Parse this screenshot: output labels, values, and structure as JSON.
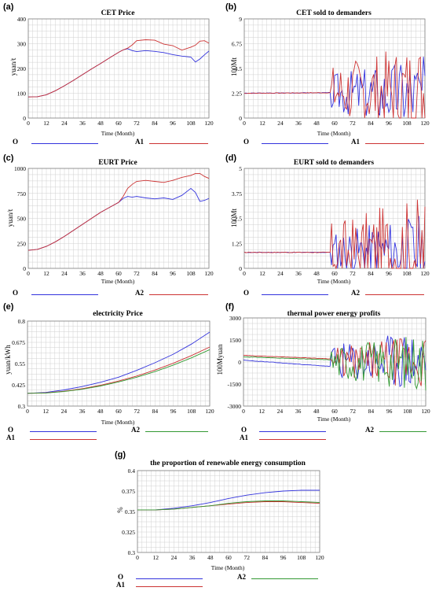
{
  "colors": {
    "O": "#3333dd",
    "A1": "#cc3333",
    "A2": "#339933",
    "grid": "#d0d0d0",
    "axis": "#808080"
  },
  "chart_data": [
    {
      "id": "a",
      "panel_label": "(a)",
      "type": "line",
      "title": "CET Price",
      "xlabel": "Time (Month)",
      "ylabel": "yuan/t",
      "xlim": [
        0,
        120
      ],
      "ylim": [
        0,
        400
      ],
      "x_ticks": [
        "0",
        "12",
        "24",
        "36",
        "48",
        "60",
        "72",
        "84",
        "96",
        "108",
        "120"
      ],
      "y_ticks": [
        "0",
        "100",
        "200",
        "300",
        "400"
      ],
      "x": [
        0,
        6,
        12,
        18,
        24,
        30,
        36,
        42,
        48,
        54,
        60,
        63,
        66,
        69,
        72,
        78,
        84,
        90,
        96,
        102,
        108,
        111,
        114,
        117,
        120
      ],
      "series": [
        {
          "name": "O",
          "color_key": "O",
          "values": [
            85,
            86,
            94,
            110,
            130,
            152,
            175,
            198,
            220,
            243,
            265,
            275,
            280,
            272,
            268,
            272,
            269,
            264,
            256,
            250,
            246,
            226,
            238,
            255,
            270
          ]
        },
        {
          "name": "A1",
          "color_key": "A1",
          "values": [
            85,
            86,
            94,
            110,
            130,
            152,
            175,
            198,
            220,
            243,
            265,
            275,
            282,
            295,
            312,
            316,
            314,
            298,
            292,
            274,
            286,
            294,
            310,
            312,
            302
          ]
        }
      ],
      "legend": [
        {
          "label": "O",
          "color_key": "O"
        },
        {
          "label": "A1",
          "color_key": "A1"
        }
      ]
    },
    {
      "id": "b",
      "panel_label": "(b)",
      "type": "line",
      "title": "CET sold to demanders",
      "xlabel": "Time (Month)",
      "ylabel": "100Mt",
      "xlim": [
        0,
        120
      ],
      "ylim": [
        0,
        9
      ],
      "x_ticks": [
        "0",
        "12",
        "24",
        "36",
        "48",
        "60",
        "72",
        "84",
        "96",
        "108",
        "120"
      ],
      "y_ticks": [
        "0",
        "2.25",
        "4.5",
        "6.75",
        "9"
      ],
      "series": [
        {
          "name": "O",
          "color_key": "O",
          "baseline": 2.3,
          "lead_value": 2.25,
          "osc_start": 57,
          "amp": 2.3,
          "seed": 3
        },
        {
          "name": "A1",
          "color_key": "A1",
          "baseline": 2.3,
          "lead_value": 2.25,
          "osc_start": 57,
          "amp": 3.2,
          "seed": 7
        }
      ],
      "legend": [
        {
          "label": "O",
          "color_key": "O"
        },
        {
          "label": "A1",
          "color_key": "A1"
        }
      ]
    },
    {
      "id": "c",
      "panel_label": "(c)",
      "type": "line",
      "title": "EURT Price",
      "xlabel": "Time (Month)",
      "ylabel": "yuan/t",
      "xlim": [
        0,
        120
      ],
      "ylim": [
        0,
        1000
      ],
      "x_ticks": [
        "0",
        "12",
        "24",
        "36",
        "48",
        "60",
        "72",
        "84",
        "96",
        "108",
        "120"
      ],
      "y_ticks": [
        "0",
        "250",
        "500",
        "750",
        "1000"
      ],
      "x": [
        0,
        6,
        12,
        18,
        24,
        30,
        36,
        42,
        48,
        54,
        60,
        63,
        66,
        69,
        72,
        78,
        84,
        90,
        96,
        102,
        108,
        111,
        114,
        117,
        120
      ],
      "series": [
        {
          "name": "O",
          "color_key": "O",
          "values": [
            180,
            190,
            220,
            265,
            320,
            380,
            440,
            500,
            560,
            610,
            660,
            700,
            720,
            712,
            720,
            705,
            695,
            705,
            690,
            730,
            800,
            760,
            670,
            680,
            700
          ]
        },
        {
          "name": "A2",
          "color_key": "A1",
          "values": [
            180,
            190,
            220,
            265,
            320,
            380,
            440,
            500,
            560,
            610,
            660,
            720,
            800,
            840,
            870,
            880,
            870,
            860,
            880,
            910,
            930,
            950,
            950,
            920,
            900
          ]
        }
      ],
      "legend": [
        {
          "label": "O",
          "color_key": "O"
        },
        {
          "label": "A2",
          "color_key": "A1"
        }
      ]
    },
    {
      "id": "d",
      "panel_label": "(d)",
      "type": "line",
      "title": "EURT sold to demanders",
      "xlabel": "Time (Month)",
      "ylabel": "100Mt",
      "xlim": [
        0,
        120
      ],
      "ylim": [
        0,
        5
      ],
      "x_ticks": [
        "0",
        "12",
        "24",
        "36",
        "48",
        "60",
        "72",
        "84",
        "96",
        "108",
        "120"
      ],
      "y_ticks": [
        "0",
        "1.25",
        "2.5",
        "3.75",
        "5"
      ],
      "series": [
        {
          "name": "O",
          "color_key": "O",
          "baseline": 0.8,
          "lead_value": 0.8,
          "osc_start": 57,
          "amp": 1.3,
          "seed": 11
        },
        {
          "name": "A2",
          "color_key": "A1",
          "baseline": 0.8,
          "lead_value": 0.8,
          "osc_start": 57,
          "amp": 2.0,
          "seed": 17
        }
      ],
      "legend": [
        {
          "label": "O",
          "color_key": "O"
        },
        {
          "label": "A2",
          "color_key": "A1"
        }
      ]
    },
    {
      "id": "e",
      "panel_label": "(e)",
      "type": "line",
      "title": "electricity Price",
      "xlabel": "Time (Month)",
      "ylabel": "yuan/kWh",
      "xlim": [
        0,
        120
      ],
      "ylim": [
        0.3,
        0.8
      ],
      "x_ticks": [
        "0",
        "12",
        "24",
        "36",
        "48",
        "60",
        "72",
        "84",
        "96",
        "108",
        "120"
      ],
      "y_ticks": [
        "0.3",
        "0.425",
        "0.55",
        "0.675",
        "0.8"
      ],
      "x": [
        0,
        12,
        24,
        36,
        48,
        60,
        72,
        84,
        96,
        108,
        120
      ],
      "series": [
        {
          "name": "O",
          "color_key": "O",
          "values": [
            0.375,
            0.38,
            0.395,
            0.415,
            0.44,
            0.47,
            0.51,
            0.555,
            0.605,
            0.665,
            0.735
          ]
        },
        {
          "name": "A1",
          "color_key": "A1",
          "values": [
            0.375,
            0.378,
            0.387,
            0.402,
            0.422,
            0.447,
            0.477,
            0.512,
            0.552,
            0.597,
            0.647
          ]
        },
        {
          "name": "A2",
          "color_key": "A2",
          "values": [
            0.375,
            0.377,
            0.385,
            0.399,
            0.418,
            0.442,
            0.47,
            0.503,
            0.541,
            0.584,
            0.632
          ]
        }
      ],
      "legend": [
        {
          "label": "O",
          "color_key": "O"
        },
        {
          "label": "A2",
          "color_key": "A2"
        },
        {
          "label": "A1",
          "color_key": "A1"
        }
      ]
    },
    {
      "id": "f",
      "panel_label": "(f)",
      "type": "line",
      "title": "thermal power energy profits",
      "xlabel": "Time (Month)",
      "ylabel": "100Myuan",
      "xlim": [
        0,
        120
      ],
      "ylim": [
        -3000,
        3000
      ],
      "x_ticks": [
        "0",
        "12",
        "24",
        "36",
        "48",
        "60",
        "72",
        "84",
        "96",
        "108",
        "120"
      ],
      "y_ticks": [
        "-3000",
        "-1500",
        "0",
        "1500",
        "3000"
      ],
      "series": [
        {
          "name": "O",
          "color_key": "O",
          "baseline": 0,
          "lead_value": 120,
          "lead_end": -300,
          "osc_start": 57,
          "amp": 1500,
          "seed": 23
        },
        {
          "name": "A1",
          "color_key": "A1",
          "baseline": 0,
          "lead_value": 450,
          "lead_end": 220,
          "osc_start": 57,
          "amp": 1300,
          "seed": 29
        },
        {
          "name": "A2",
          "color_key": "A2",
          "baseline": 0,
          "lead_value": 350,
          "lead_end": 150,
          "osc_start": 57,
          "amp": 1400,
          "seed": 31
        }
      ],
      "legend": [
        {
          "label": "O",
          "color_key": "O"
        },
        {
          "label": "A2",
          "color_key": "A2"
        },
        {
          "label": "A1",
          "color_key": "A1"
        }
      ]
    },
    {
      "id": "g",
      "panel_label": "(g)",
      "type": "line",
      "title": "the proportion of renewable energy consumption",
      "xlabel": "Time (Month)",
      "ylabel": "%",
      "xlim": [
        0,
        120
      ],
      "ylim": [
        0.3,
        0.4
      ],
      "x_ticks": [
        "0",
        "12",
        "24",
        "36",
        "48",
        "60",
        "72",
        "84",
        "96",
        "108",
        "120"
      ],
      "y_ticks": [
        "0.3",
        "0.325",
        "0.35",
        "0.375",
        "0.4"
      ],
      "x": [
        0,
        12,
        24,
        36,
        48,
        60,
        72,
        84,
        96,
        108,
        120
      ],
      "series": [
        {
          "name": "O",
          "color_key": "O",
          "values": [
            0.352,
            0.352,
            0.354,
            0.357,
            0.361,
            0.366,
            0.37,
            0.373,
            0.375,
            0.376,
            0.376
          ]
        },
        {
          "name": "A1",
          "color_key": "A1",
          "values": [
            0.352,
            0.352,
            0.353,
            0.355,
            0.357,
            0.359,
            0.361,
            0.362,
            0.362,
            0.361,
            0.36
          ]
        },
        {
          "name": "A2",
          "color_key": "A2",
          "values": [
            0.352,
            0.352,
            0.353,
            0.355,
            0.357,
            0.36,
            0.362,
            0.363,
            0.363,
            0.362,
            0.361
          ]
        }
      ],
      "legend": [
        {
          "label": "O",
          "color_key": "O"
        },
        {
          "label": "A2",
          "color_key": "A2"
        },
        {
          "label": "A1",
          "color_key": "A1"
        }
      ]
    }
  ]
}
